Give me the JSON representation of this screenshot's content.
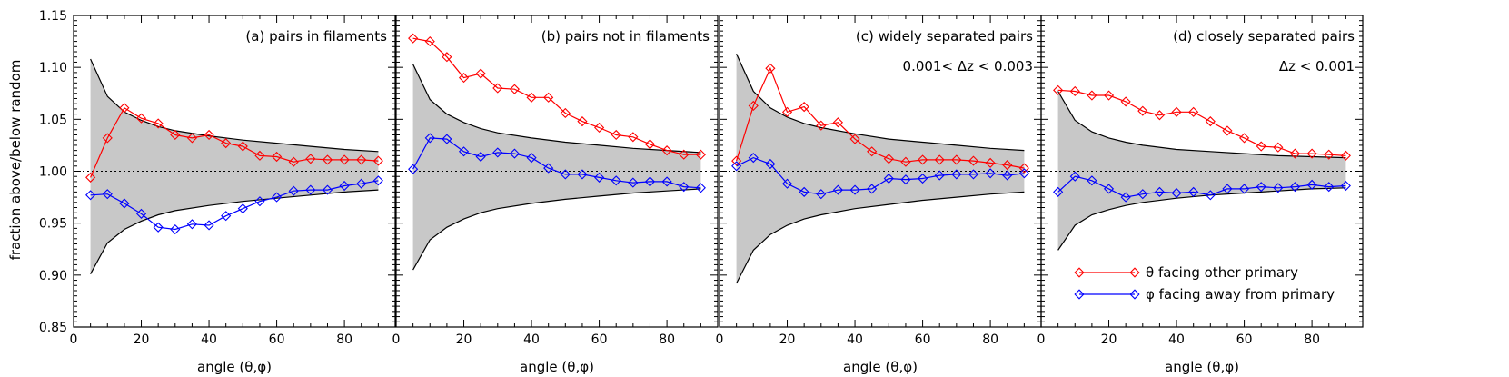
{
  "figure": {
    "ylabel": "fraction above/below random",
    "xlabel": "angle (θ,φ)",
    "ylim": [
      0.85,
      1.15
    ],
    "xlim": [
      0,
      95
    ],
    "yticks": [
      "0.85",
      "0.90",
      "0.95",
      "1.00",
      "1.05",
      "1.10",
      "1.15"
    ],
    "xticks": [
      "0",
      "20",
      "40",
      "60",
      "80"
    ],
    "colors": {
      "theta": "#ff0000",
      "phi": "#0000ff",
      "band": "#c8c8c8",
      "envelope": "#000000"
    },
    "marker": "diamond",
    "legend": {
      "placement": "bottom-right of panel d",
      "entries": [
        {
          "label": "θ facing other primary",
          "color": "#ff0000"
        },
        {
          "label": "φ facing away from primary",
          "color": "#0000ff"
        }
      ]
    }
  },
  "chart_data": [
    {
      "type": "line",
      "title": "(a) pairs in filaments",
      "subtitle": "",
      "xlabel": "angle (θ,φ)",
      "ylabel": "fraction above/below random",
      "xlim": [
        0,
        95
      ],
      "ylim": [
        0.85,
        1.15
      ],
      "reference_line": 1.0,
      "x": [
        5,
        10,
        15,
        20,
        25,
        30,
        35,
        40,
        45,
        50,
        55,
        60,
        65,
        70,
        75,
        80,
        85,
        90
      ],
      "series": [
        {
          "key": "theta",
          "name": "θ facing other primary",
          "values": [
            0.994,
            1.032,
            1.061,
            1.051,
            1.046,
            1.035,
            1.032,
            1.035,
            1.027,
            1.024,
            1.015,
            1.014,
            1.009,
            1.012,
            1.011,
            1.011,
            1.011,
            1.01
          ]
        },
        {
          "key": "phi",
          "name": "φ facing away from primary",
          "values": [
            0.977,
            0.978,
            0.969,
            0.959,
            0.946,
            0.944,
            0.949,
            0.948,
            0.957,
            0.964,
            0.971,
            0.975,
            0.981,
            0.982,
            0.982,
            0.986,
            0.988,
            0.991
          ]
        }
      ],
      "band": {
        "x": [
          5,
          10,
          15,
          20,
          25,
          30,
          40,
          50,
          60,
          70,
          80,
          90
        ],
        "upper": [
          1.108,
          1.072,
          1.057,
          1.049,
          1.043,
          1.039,
          1.034,
          1.03,
          1.027,
          1.024,
          1.021,
          1.019
        ],
        "lower": [
          0.901,
          0.931,
          0.944,
          0.952,
          0.958,
          0.962,
          0.967,
          0.971,
          0.974,
          0.977,
          0.98,
          0.982
        ]
      }
    },
    {
      "type": "line",
      "title": "(b) pairs not in filaments",
      "subtitle": "",
      "xlabel": "angle (θ,φ)",
      "xlim": [
        0,
        95
      ],
      "ylim": [
        0.85,
        1.15
      ],
      "reference_line": 1.0,
      "x": [
        5,
        10,
        15,
        20,
        25,
        30,
        35,
        40,
        45,
        50,
        55,
        60,
        65,
        70,
        75,
        80,
        85,
        90
      ],
      "series": [
        {
          "key": "theta",
          "name": "θ facing other primary",
          "values": [
            1.128,
            1.125,
            1.11,
            1.09,
            1.094,
            1.08,
            1.079,
            1.071,
            1.071,
            1.056,
            1.048,
            1.042,
            1.035,
            1.033,
            1.026,
            1.02,
            1.016,
            1.016
          ]
        },
        {
          "key": "phi",
          "name": "φ facing away from primary",
          "values": [
            1.002,
            1.032,
            1.031,
            1.019,
            1.014,
            1.018,
            1.017,
            1.013,
            1.003,
            0.997,
            0.997,
            0.994,
            0.991,
            0.989,
            0.99,
            0.99,
            0.985,
            0.984
          ]
        }
      ],
      "band": {
        "x": [
          5,
          10,
          15,
          20,
          25,
          30,
          40,
          50,
          60,
          70,
          80,
          90
        ],
        "upper": [
          1.103,
          1.069,
          1.055,
          1.047,
          1.041,
          1.037,
          1.032,
          1.028,
          1.025,
          1.022,
          1.02,
          1.018
        ],
        "lower": [
          0.905,
          0.934,
          0.946,
          0.954,
          0.96,
          0.964,
          0.969,
          0.973,
          0.976,
          0.979,
          0.981,
          0.983
        ]
      }
    },
    {
      "type": "line",
      "title": "(c) widely separated pairs",
      "subtitle": "0.001< Δz < 0.003",
      "xlabel": "angle (θ,φ)",
      "xlim": [
        0,
        95
      ],
      "ylim": [
        0.85,
        1.15
      ],
      "reference_line": 1.0,
      "x": [
        5,
        10,
        15,
        20,
        25,
        30,
        35,
        40,
        45,
        50,
        55,
        60,
        65,
        70,
        75,
        80,
        85,
        90
      ],
      "series": [
        {
          "key": "theta",
          "name": "θ facing other primary",
          "values": [
            1.01,
            1.063,
            1.099,
            1.057,
            1.062,
            1.044,
            1.047,
            1.031,
            1.019,
            1.012,
            1.009,
            1.011,
            1.011,
            1.011,
            1.01,
            1.008,
            1.006,
            1.003
          ]
        },
        {
          "key": "phi",
          "name": "φ facing away from primary",
          "values": [
            1.005,
            1.013,
            1.007,
            0.988,
            0.98,
            0.978,
            0.982,
            0.982,
            0.983,
            0.993,
            0.992,
            0.993,
            0.996,
            0.997,
            0.997,
            0.998,
            0.996,
            0.998
          ]
        }
      ],
      "band": {
        "x": [
          5,
          10,
          15,
          20,
          25,
          30,
          40,
          50,
          60,
          70,
          80,
          90
        ],
        "upper": [
          1.113,
          1.077,
          1.061,
          1.052,
          1.046,
          1.042,
          1.036,
          1.031,
          1.028,
          1.025,
          1.022,
          1.02
        ],
        "lower": [
          0.892,
          0.924,
          0.939,
          0.948,
          0.954,
          0.958,
          0.964,
          0.968,
          0.972,
          0.975,
          0.978,
          0.98
        ]
      }
    },
    {
      "type": "line",
      "title": "(d) closely separated pairs",
      "subtitle": "Δz < 0.001",
      "xlabel": "angle (θ,φ)",
      "xlim": [
        0,
        95
      ],
      "ylim": [
        0.85,
        1.15
      ],
      "reference_line": 1.0,
      "x": [
        5,
        10,
        15,
        20,
        25,
        30,
        35,
        40,
        45,
        50,
        55,
        60,
        65,
        70,
        75,
        80,
        85,
        90
      ],
      "series": [
        {
          "key": "theta",
          "name": "θ facing other primary",
          "values": [
            1.078,
            1.077,
            1.073,
            1.073,
            1.067,
            1.058,
            1.054,
            1.057,
            1.057,
            1.048,
            1.039,
            1.032,
            1.024,
            1.023,
            1.017,
            1.017,
            1.016,
            1.015
          ]
        },
        {
          "key": "phi",
          "name": "φ facing away from primary",
          "values": [
            0.98,
            0.995,
            0.991,
            0.983,
            0.975,
            0.978,
            0.98,
            0.979,
            0.98,
            0.977,
            0.983,
            0.983,
            0.985,
            0.984,
            0.985,
            0.987,
            0.985,
            0.986
          ]
        }
      ],
      "band": {
        "x": [
          5,
          10,
          15,
          20,
          25,
          30,
          40,
          50,
          60,
          70,
          80,
          90
        ],
        "upper": [
          1.077,
          1.049,
          1.038,
          1.032,
          1.028,
          1.025,
          1.021,
          1.019,
          1.017,
          1.015,
          1.014,
          1.013
        ],
        "lower": [
          0.924,
          0.948,
          0.958,
          0.963,
          0.967,
          0.97,
          0.974,
          0.977,
          0.979,
          0.981,
          0.983,
          0.984
        ]
      }
    }
  ]
}
